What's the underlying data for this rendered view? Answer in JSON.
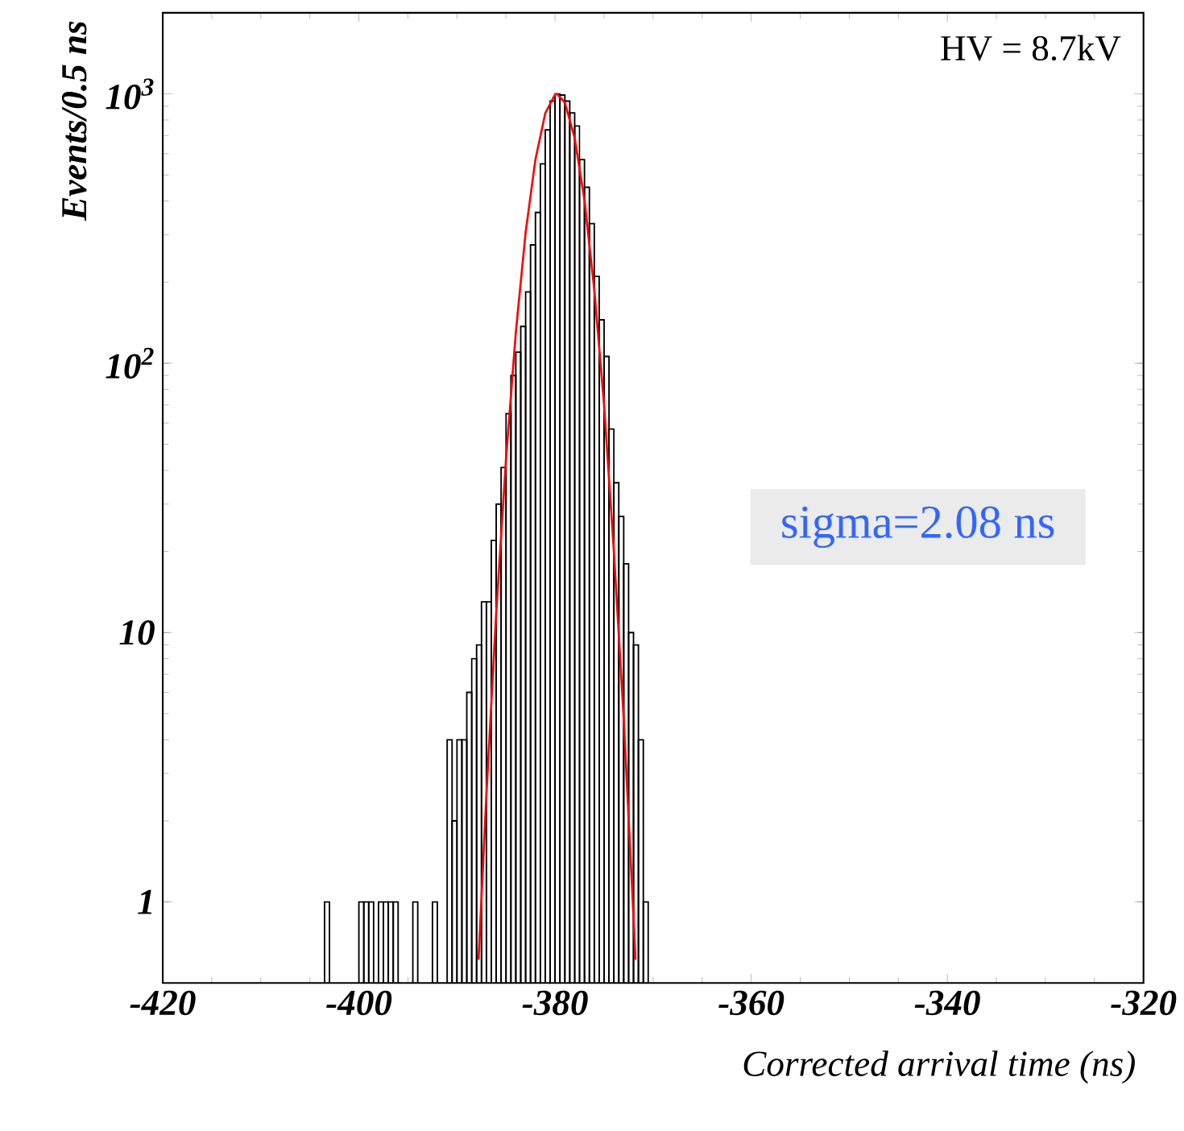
{
  "chart_data": {
    "type": "histogram",
    "xlabel": "Corrected arrival time (ns)",
    "ylabel": "Events/0.5 ns",
    "log": "y",
    "xlim": [
      -420,
      -320
    ],
    "ylim": [
      0.5,
      2000
    ],
    "xticks": [
      -420,
      -400,
      -380,
      -360,
      -340,
      -320
    ],
    "yticks": [
      1,
      10,
      {
        "value": 100,
        "label": "10$^{2}$"
      },
      {
        "value": 1000,
        "label": "10$^{3}$"
      }
    ],
    "grid": false,
    "annotations": [
      "HV = 8.7kV",
      "sigma=2.08 ns"
    ],
    "series": [
      {
        "color": "#000000",
        "bins": [
          -403.5,
          -403.0
        ],
        "values": [
          1
        ]
      },
      {
        "color": "#000000",
        "bins": [
          -400.0,
          -399.5,
          -399.0,
          -398.5
        ],
        "values": [
          1,
          1,
          1
        ]
      },
      {
        "color": "#000000",
        "bins": [
          -398.0,
          -397.5,
          -397.0,
          -396.5,
          -396.0
        ],
        "values": [
          1,
          1,
          1,
          1
        ]
      },
      {
        "color": "#000000",
        "bins": [
          -394.5,
          -394.0
        ],
        "values": [
          1
        ]
      },
      {
        "color": "#000000",
        "bins": [
          -392.5,
          -392.0
        ],
        "values": [
          1
        ]
      },
      {
        "color": "#000000",
        "bins": [
          -391.0,
          -390.5,
          -390.0,
          -389.5,
          -389.0,
          -388.5,
          -388.0,
          -387.5,
          -387.0,
          -386.5,
          -386.0,
          -385.5,
          -385.0,
          -384.5,
          -384.0,
          -383.5,
          -383.0,
          -382.5,
          -382.0,
          -381.5,
          -381.0,
          -380.5,
          -380.0,
          -379.5,
          -379.0,
          -378.5,
          -378.0,
          -377.5,
          -377.0,
          -376.5,
          -376.0,
          -375.5,
          -375.0,
          -374.5,
          -374.0,
          -373.5,
          -373.0,
          -372.5,
          -372.0,
          -371.5,
          -371.0,
          -370.5
        ],
        "values": [
          4,
          2,
          4,
          4,
          6,
          8,
          9,
          13,
          13,
          22,
          30,
          41,
          65,
          90,
          110,
          137,
          184,
          275,
          363,
          550,
          735,
          940,
          1000,
          990,
          940,
          850,
          760,
          570,
          450,
          330,
          210,
          145,
          106,
          57,
          36,
          27,
          18,
          10,
          9,
          4,
          1
        ]
      },
      {
        "type": "line",
        "color": "#ff0000",
        "x": [
          -387.8,
          -387,
          -386,
          -385,
          -384,
          -383,
          -382,
          -381,
          -380,
          -379.8,
          -379,
          -378,
          -377,
          -376,
          -375,
          -374,
          -373,
          -372,
          -371.8
        ],
        "values": [
          0.61,
          2.5,
          11.8,
          44,
          130,
          306,
          571,
          847,
          995,
          1000,
          929,
          687,
          404,
          188,
          70,
          20,
          4.8,
          0.88,
          0.61
        ]
      }
    ]
  }
}
